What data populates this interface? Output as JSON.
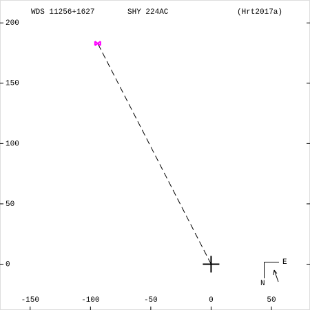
{
  "chart_data": {
    "type": "scatter",
    "title": "WDS 11256+1627",
    "subtitle": "SHY 224AC",
    "reference": "(Hrt2017a)",
    "x": [
      -94
    ],
    "y": [
      183
    ],
    "color": "#ff00ff",
    "primary": {
      "x": 0,
      "y": 0
    },
    "xlim": [
      -175,
      82
    ],
    "ylim": [
      -38,
      219
    ],
    "xticks": [
      -150,
      -100,
      -50,
      0,
      50
    ],
    "yticks": [
      0,
      50,
      100,
      150,
      200
    ],
    "compass": {
      "north": "N",
      "east": "E"
    }
  }
}
